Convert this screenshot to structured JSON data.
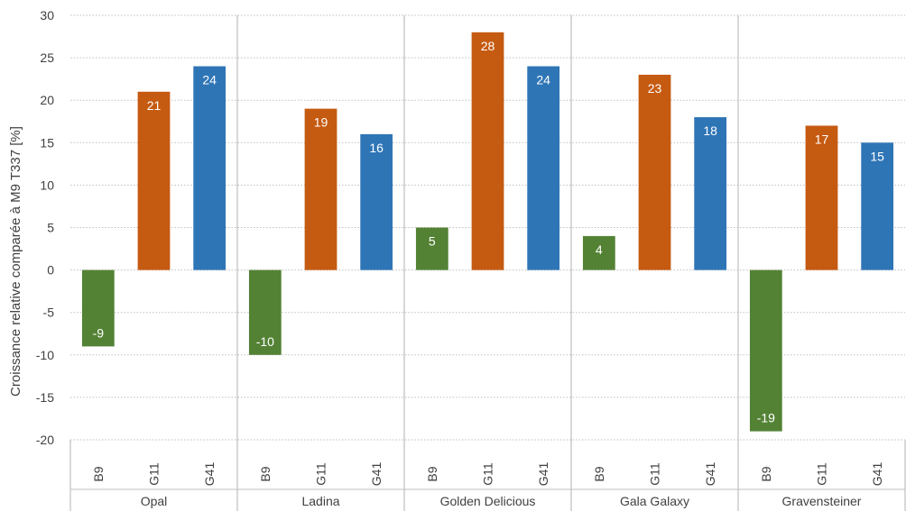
{
  "chart_data": {
    "type": "bar",
    "title": "",
    "ylabel": "Croissance relative comparée à M9 T337 [%]",
    "ylim": [
      -20,
      30
    ],
    "yticks": [
      30,
      25,
      20,
      15,
      10,
      5,
      0,
      -5,
      -10,
      -15,
      -20
    ],
    "grid": "horizontal dotted",
    "groups": [
      "Opal",
      "Ladina",
      "Golden Delicious",
      "Gala Galaxy",
      "Gravensteiner"
    ],
    "categories": [
      "B9",
      "G11",
      "G41"
    ],
    "category_colors": {
      "B9": "#548235",
      "G11": "#C55A11",
      "G41": "#2E75B6"
    },
    "values": [
      [
        -9,
        21,
        24
      ],
      [
        -10,
        19,
        16
      ],
      [
        5,
        28,
        24
      ],
      [
        4,
        23,
        18
      ],
      [
        -19,
        17,
        15
      ]
    ]
  }
}
